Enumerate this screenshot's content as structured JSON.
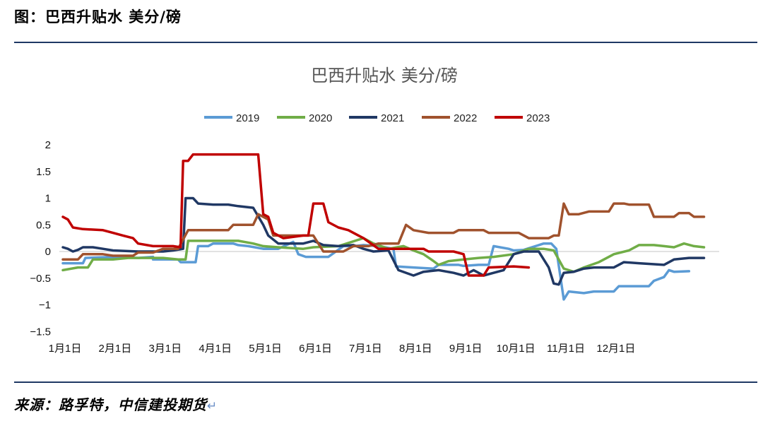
{
  "header": {
    "title": "图：巴西升贴水 美分/磅"
  },
  "footer": {
    "source": "来源：路孚特，中信建投期货",
    "return_mark": "↵"
  },
  "chart_data": {
    "type": "line",
    "title": "巴西升贴水 美分/磅",
    "xlabel": "",
    "ylabel": "",
    "ylim": [
      -1.5,
      2
    ],
    "yticks": [
      -1.5,
      -1,
      -0.5,
      0,
      0.5,
      1,
      1.5,
      2
    ],
    "ytick_labels": [
      "−1.5",
      "−1",
      "−0.5",
      "0",
      "0.5",
      "1",
      "1.5",
      "2"
    ],
    "xlim": [
      0,
      12.5
    ],
    "xticks": [
      0,
      1,
      2,
      3,
      4,
      5,
      6,
      7,
      8,
      9,
      10,
      11
    ],
    "xtick_labels": [
      "1月1日",
      "2月1日",
      "3月1日",
      "4月1日",
      "5月1日",
      "6月1日",
      "7月1日",
      "8月1日",
      "9月1日",
      "10月1日",
      "11月1日",
      "12月1日"
    ],
    "legend_position": "top",
    "grid": false,
    "series": [
      {
        "name": "2019",
        "color": "#5b9bd5",
        "points": [
          [
            0,
            -0.22
          ],
          [
            0.4,
            -0.22
          ],
          [
            0.45,
            -0.12
          ],
          [
            1.0,
            -0.1
          ],
          [
            1.5,
            -0.12
          ],
          [
            1.8,
            -0.1
          ],
          [
            1.8,
            -0.15
          ],
          [
            2.3,
            -0.15
          ],
          [
            2.35,
            -0.2
          ],
          [
            2.65,
            -0.2
          ],
          [
            2.7,
            0.1
          ],
          [
            2.9,
            0.1
          ],
          [
            3.0,
            0.15
          ],
          [
            3.4,
            0.15
          ],
          [
            3.5,
            0.12
          ],
          [
            3.7,
            0.1
          ],
          [
            4.0,
            0.05
          ],
          [
            4.3,
            0.05
          ],
          [
            4.6,
            0.18
          ],
          [
            4.7,
            -0.05
          ],
          [
            4.85,
            -0.1
          ],
          [
            5.0,
            -0.1
          ],
          [
            5.3,
            -0.1
          ],
          [
            5.6,
            0.1
          ],
          [
            5.8,
            0.1
          ],
          [
            6.0,
            0.12
          ],
          [
            6.3,
            0.1
          ],
          [
            6.6,
            0.05
          ],
          [
            6.65,
            -0.28
          ],
          [
            7.0,
            -0.3
          ],
          [
            7.4,
            -0.32
          ],
          [
            7.5,
            -0.25
          ],
          [
            7.9,
            -0.25
          ],
          [
            8.0,
            -0.27
          ],
          [
            8.3,
            -0.25
          ],
          [
            8.5,
            -0.25
          ],
          [
            8.6,
            0.1
          ],
          [
            8.9,
            0.05
          ],
          [
            9.0,
            0.02
          ],
          [
            9.2,
            0.03
          ],
          [
            9.6,
            0.15
          ],
          [
            9.75,
            0.15
          ],
          [
            9.85,
            0.05
          ],
          [
            10.0,
            -0.9
          ],
          [
            10.1,
            -0.75
          ],
          [
            10.4,
            -0.78
          ],
          [
            10.6,
            -0.75
          ],
          [
            11.0,
            -0.75
          ],
          [
            11.1,
            -0.65
          ],
          [
            11.7,
            -0.65
          ],
          [
            11.8,
            -0.55
          ],
          [
            12.0,
            -0.48
          ],
          [
            12.1,
            -0.35
          ],
          [
            12.2,
            -0.38
          ],
          [
            12.5,
            -0.37
          ]
        ]
      },
      {
        "name": "2020",
        "color": "#70ad47",
        "points": [
          [
            0,
            -0.35
          ],
          [
            0.3,
            -0.3
          ],
          [
            0.5,
            -0.3
          ],
          [
            0.6,
            -0.15
          ],
          [
            1.0,
            -0.15
          ],
          [
            1.3,
            -0.12
          ],
          [
            2.0,
            -0.12
          ],
          [
            2.3,
            -0.15
          ],
          [
            2.45,
            -0.15
          ],
          [
            2.5,
            0.2
          ],
          [
            3.0,
            0.2
          ],
          [
            3.5,
            0.2
          ],
          [
            3.8,
            0.15
          ],
          [
            4.0,
            0.1
          ],
          [
            4.3,
            0.08
          ],
          [
            4.8,
            0.05
          ],
          [
            5.0,
            0.08
          ],
          [
            5.5,
            0.1
          ],
          [
            6.0,
            0.25
          ],
          [
            6.2,
            0.15
          ],
          [
            6.5,
            0.05
          ],
          [
            6.8,
            0.1
          ],
          [
            7.0,
            0.02
          ],
          [
            7.2,
            -0.05
          ],
          [
            7.4,
            -0.18
          ],
          [
            7.5,
            -0.25
          ],
          [
            7.7,
            -0.18
          ],
          [
            8.0,
            -0.15
          ],
          [
            8.3,
            -0.12
          ],
          [
            8.6,
            -0.1
          ],
          [
            9.0,
            -0.05
          ],
          [
            9.3,
            0.05
          ],
          [
            9.6,
            0.05
          ],
          [
            9.8,
            0.02
          ],
          [
            10.0,
            -0.32
          ],
          [
            10.2,
            -0.38
          ],
          [
            10.4,
            -0.3
          ],
          [
            10.7,
            -0.2
          ],
          [
            11.0,
            -0.05
          ],
          [
            11.3,
            0.02
          ],
          [
            11.5,
            0.12
          ],
          [
            11.8,
            0.12
          ],
          [
            12.0,
            0.1
          ],
          [
            12.2,
            0.08
          ],
          [
            12.4,
            0.15
          ],
          [
            12.6,
            0.1
          ],
          [
            12.8,
            0.08
          ]
        ]
      },
      {
        "name": "2021",
        "color": "#203864",
        "points": [
          [
            0,
            0.08
          ],
          [
            0.1,
            0.05
          ],
          [
            0.2,
            0.0
          ],
          [
            0.3,
            0.03
          ],
          [
            0.4,
            0.08
          ],
          [
            0.6,
            0.08
          ],
          [
            0.8,
            0.05
          ],
          [
            1.0,
            0.02
          ],
          [
            1.5,
            0.0
          ],
          [
            2.0,
            0.0
          ],
          [
            2.2,
            0.02
          ],
          [
            2.4,
            0.05
          ],
          [
            2.45,
            1.0
          ],
          [
            2.6,
            1.0
          ],
          [
            2.7,
            0.9
          ],
          [
            3.0,
            0.88
          ],
          [
            3.3,
            0.88
          ],
          [
            3.5,
            0.85
          ],
          [
            3.8,
            0.82
          ],
          [
            4.0,
            0.5
          ],
          [
            4.1,
            0.3
          ],
          [
            4.3,
            0.15
          ],
          [
            4.8,
            0.15
          ],
          [
            5.0,
            0.2
          ],
          [
            5.2,
            0.12
          ],
          [
            5.5,
            0.1
          ],
          [
            5.8,
            0.12
          ],
          [
            6.0,
            0.05
          ],
          [
            6.2,
            0.0
          ],
          [
            6.5,
            0.02
          ],
          [
            6.7,
            -0.35
          ],
          [
            7.0,
            -0.45
          ],
          [
            7.2,
            -0.38
          ],
          [
            7.5,
            -0.35
          ],
          [
            7.8,
            -0.4
          ],
          [
            8.0,
            -0.45
          ],
          [
            8.2,
            -0.35
          ],
          [
            8.4,
            -0.45
          ],
          [
            8.6,
            -0.4
          ],
          [
            8.8,
            -0.35
          ],
          [
            9.0,
            -0.05
          ],
          [
            9.2,
            0.0
          ],
          [
            9.5,
            0.0
          ],
          [
            9.7,
            -0.3
          ],
          [
            9.8,
            -0.6
          ],
          [
            9.9,
            -0.62
          ],
          [
            10.0,
            -0.4
          ],
          [
            10.2,
            -0.38
          ],
          [
            10.4,
            -0.32
          ],
          [
            10.6,
            -0.3
          ],
          [
            11.0,
            -0.3
          ],
          [
            11.2,
            -0.2
          ],
          [
            11.5,
            -0.22
          ],
          [
            12.0,
            -0.25
          ],
          [
            12.2,
            -0.15
          ],
          [
            12.5,
            -0.12
          ],
          [
            12.8,
            -0.12
          ]
        ]
      },
      {
        "name": "2022",
        "color": "#a0522d",
        "points": [
          [
            0,
            -0.15
          ],
          [
            0.3,
            -0.15
          ],
          [
            0.4,
            -0.05
          ],
          [
            0.8,
            -0.05
          ],
          [
            1.0,
            -0.08
          ],
          [
            1.4,
            -0.08
          ],
          [
            1.5,
            -0.02
          ],
          [
            1.8,
            -0.02
          ],
          [
            2.0,
            0.05
          ],
          [
            2.3,
            0.05
          ],
          [
            2.5,
            0.4
          ],
          [
            3.0,
            0.4
          ],
          [
            3.3,
            0.4
          ],
          [
            3.4,
            0.5
          ],
          [
            3.8,
            0.5
          ],
          [
            3.9,
            0.7
          ],
          [
            4.1,
            0.6
          ],
          [
            4.2,
            0.3
          ],
          [
            4.6,
            0.3
          ],
          [
            5.0,
            0.3
          ],
          [
            5.2,
            0.0
          ],
          [
            5.6,
            0.0
          ],
          [
            5.8,
            0.1
          ],
          [
            6.1,
            0.1
          ],
          [
            6.3,
            0.15
          ],
          [
            6.7,
            0.15
          ],
          [
            6.85,
            0.5
          ],
          [
            7.0,
            0.4
          ],
          [
            7.3,
            0.35
          ],
          [
            7.8,
            0.35
          ],
          [
            7.9,
            0.4
          ],
          [
            8.4,
            0.4
          ],
          [
            8.5,
            0.35
          ],
          [
            8.8,
            0.35
          ],
          [
            9.1,
            0.35
          ],
          [
            9.3,
            0.25
          ],
          [
            9.7,
            0.25
          ],
          [
            9.8,
            0.3
          ],
          [
            9.9,
            0.3
          ],
          [
            10.0,
            0.9
          ],
          [
            10.1,
            0.7
          ],
          [
            10.3,
            0.7
          ],
          [
            10.5,
            0.75
          ],
          [
            10.9,
            0.75
          ],
          [
            11.0,
            0.9
          ],
          [
            11.2,
            0.9
          ],
          [
            11.3,
            0.88
          ],
          [
            11.7,
            0.88
          ],
          [
            11.8,
            0.65
          ],
          [
            12.2,
            0.65
          ],
          [
            12.3,
            0.72
          ],
          [
            12.5,
            0.72
          ],
          [
            12.6,
            0.65
          ],
          [
            12.8,
            0.65
          ]
        ]
      },
      {
        "name": "2023",
        "color": "#c00000",
        "points": [
          [
            0,
            0.65
          ],
          [
            0.1,
            0.6
          ],
          [
            0.2,
            0.45
          ],
          [
            0.4,
            0.42
          ],
          [
            0.8,
            0.4
          ],
          [
            1.0,
            0.35
          ],
          [
            1.2,
            0.3
          ],
          [
            1.4,
            0.25
          ],
          [
            1.5,
            0.15
          ],
          [
            1.8,
            0.1
          ],
          [
            2.0,
            0.1
          ],
          [
            2.2,
            0.1
          ],
          [
            2.35,
            0.08
          ],
          [
            2.4,
            1.7
          ],
          [
            2.5,
            1.7
          ],
          [
            2.6,
            1.82
          ],
          [
            3.0,
            1.82
          ],
          [
            3.5,
            1.82
          ],
          [
            3.9,
            1.82
          ],
          [
            4.0,
            0.7
          ],
          [
            4.1,
            0.65
          ],
          [
            4.2,
            0.35
          ],
          [
            4.4,
            0.25
          ],
          [
            4.8,
            0.3
          ],
          [
            4.9,
            0.3
          ],
          [
            5.0,
            0.9
          ],
          [
            5.2,
            0.9
          ],
          [
            5.3,
            0.55
          ],
          [
            5.5,
            0.45
          ],
          [
            5.7,
            0.4
          ],
          [
            6.0,
            0.25
          ],
          [
            6.3,
            0.05
          ],
          [
            6.8,
            0.05
          ],
          [
            7.0,
            0.05
          ],
          [
            7.2,
            0.05
          ],
          [
            7.3,
            0.0
          ],
          [
            7.8,
            0.0
          ],
          [
            8.0,
            -0.05
          ],
          [
            8.1,
            -0.45
          ],
          [
            8.4,
            -0.45
          ],
          [
            8.5,
            -0.3
          ],
          [
            9.0,
            -0.28
          ],
          [
            9.3,
            -0.3
          ]
        ]
      }
    ]
  }
}
